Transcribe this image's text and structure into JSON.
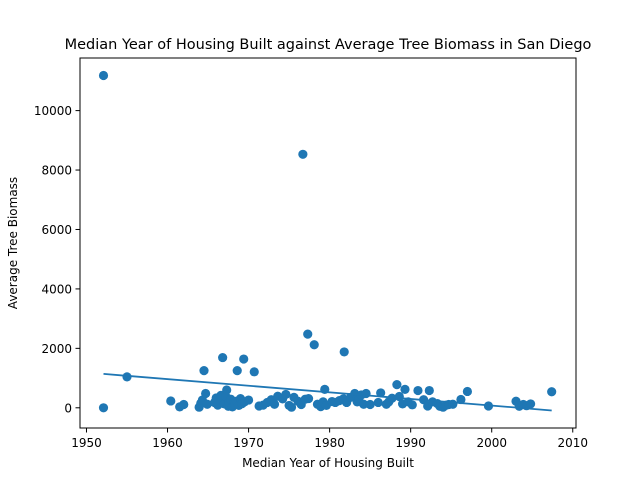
{
  "chart_data": {
    "type": "scatter",
    "title": "Median Year of Housing Built against Average Tree Biomass in San Diego",
    "xlabel": "Median Year of Housing Built",
    "ylabel": "Average Tree Biomass",
    "xlim": [
      1949.2,
      2010.4
    ],
    "ylim": [
      -680,
      11770
    ],
    "xticks": [
      1950,
      1960,
      1970,
      1980,
      1990,
      2000,
      2010
    ],
    "yticks": [
      0,
      2000,
      4000,
      6000,
      8000,
      10000
    ],
    "grid": false,
    "legend": "none",
    "colors": {
      "points": "#1f77b4",
      "trend": "#1f77b4"
    },
    "trend_line": {
      "x": [
        1952.1,
        2007.4
      ],
      "y": [
        1140,
        -90
      ]
    },
    "points": [
      [
        1952.1,
        11180
      ],
      [
        1952.1,
        0
      ],
      [
        1955,
        1040
      ],
      [
        1976.7,
        8530
      ],
      [
        1977.3,
        2480
      ],
      [
        1978.1,
        2120
      ],
      [
        1981.8,
        1880
      ],
      [
        1966.8,
        1690
      ],
      [
        1969.4,
        1640
      ],
      [
        1964.5,
        1250
      ],
      [
        1968.6,
        1250
      ],
      [
        1970.7,
        1210
      ],
      [
        1960.4,
        230
      ],
      [
        1961.5,
        30
      ],
      [
        1962,
        110
      ],
      [
        1963.9,
        20
      ],
      [
        1964.1,
        150
      ],
      [
        1964.3,
        260
      ],
      [
        1964.7,
        480
      ],
      [
        1964.9,
        120
      ],
      [
        1965.8,
        180
      ],
      [
        1966,
        330
      ],
      [
        1966.2,
        90
      ],
      [
        1966.4,
        250
      ],
      [
        1966.6,
        420
      ],
      [
        1967,
        130
      ],
      [
        1967.2,
        380
      ],
      [
        1967.3,
        600
      ],
      [
        1967.5,
        50
      ],
      [
        1967.6,
        190
      ],
      [
        1967.8,
        290
      ],
      [
        1968,
        30
      ],
      [
        1968.2,
        160
      ],
      [
        1968.3,
        120
      ],
      [
        1968.5,
        220
      ],
      [
        1968.8,
        80
      ],
      [
        1969,
        310
      ],
      [
        1969.2,
        140
      ],
      [
        1969.5,
        200
      ],
      [
        1970,
        260
      ],
      [
        1971.3,
        60
      ],
      [
        1971.8,
        90
      ],
      [
        1972.3,
        180
      ],
      [
        1972.8,
        270
      ],
      [
        1973.2,
        120
      ],
      [
        1973.6,
        390
      ],
      [
        1974.2,
        300
      ],
      [
        1974.6,
        450
      ],
      [
        1975,
        80
      ],
      [
        1975.3,
        20
      ],
      [
        1975.6,
        350
      ],
      [
        1976.1,
        220
      ],
      [
        1976.5,
        110
      ],
      [
        1977,
        290
      ],
      [
        1977.4,
        310
      ],
      [
        1978.5,
        120
      ],
      [
        1978.9,
        40
      ],
      [
        1979.2,
        200
      ],
      [
        1979.4,
        620
      ],
      [
        1979.6,
        80
      ],
      [
        1980.3,
        210
      ],
      [
        1980.7,
        180
      ],
      [
        1981.2,
        240
      ],
      [
        1981.7,
        300
      ],
      [
        1982.1,
        180
      ],
      [
        1982.6,
        350
      ],
      [
        1983.1,
        480
      ],
      [
        1983.4,
        200
      ],
      [
        1983.6,
        280
      ],
      [
        1983.9,
        430
      ],
      [
        1984.2,
        120
      ],
      [
        1984.5,
        480
      ],
      [
        1985,
        110
      ],
      [
        1986,
        180
      ],
      [
        1986.3,
        500
      ],
      [
        1987,
        120
      ],
      [
        1987.3,
        200
      ],
      [
        1987.7,
        320
      ],
      [
        1988.3,
        780
      ],
      [
        1988.6,
        380
      ],
      [
        1989,
        130
      ],
      [
        1989.3,
        620
      ],
      [
        1989.7,
        200
      ],
      [
        1990.2,
        100
      ],
      [
        1990.9,
        580
      ],
      [
        1991.6,
        270
      ],
      [
        1992.1,
        60
      ],
      [
        1992.3,
        580
      ],
      [
        1992.7,
        200
      ],
      [
        1993.3,
        140
      ],
      [
        1993.6,
        50
      ],
      [
        1994,
        20
      ],
      [
        1994.4,
        90
      ],
      [
        1994.7,
        110
      ],
      [
        1995.2,
        120
      ],
      [
        1996.2,
        280
      ],
      [
        1997,
        550
      ],
      [
        1999.6,
        60
      ],
      [
        2003,
        220
      ],
      [
        2003.4,
        50
      ],
      [
        2003.9,
        110
      ],
      [
        2004.3,
        70
      ],
      [
        2004.8,
        130
      ],
      [
        2007.4,
        540
      ]
    ]
  }
}
